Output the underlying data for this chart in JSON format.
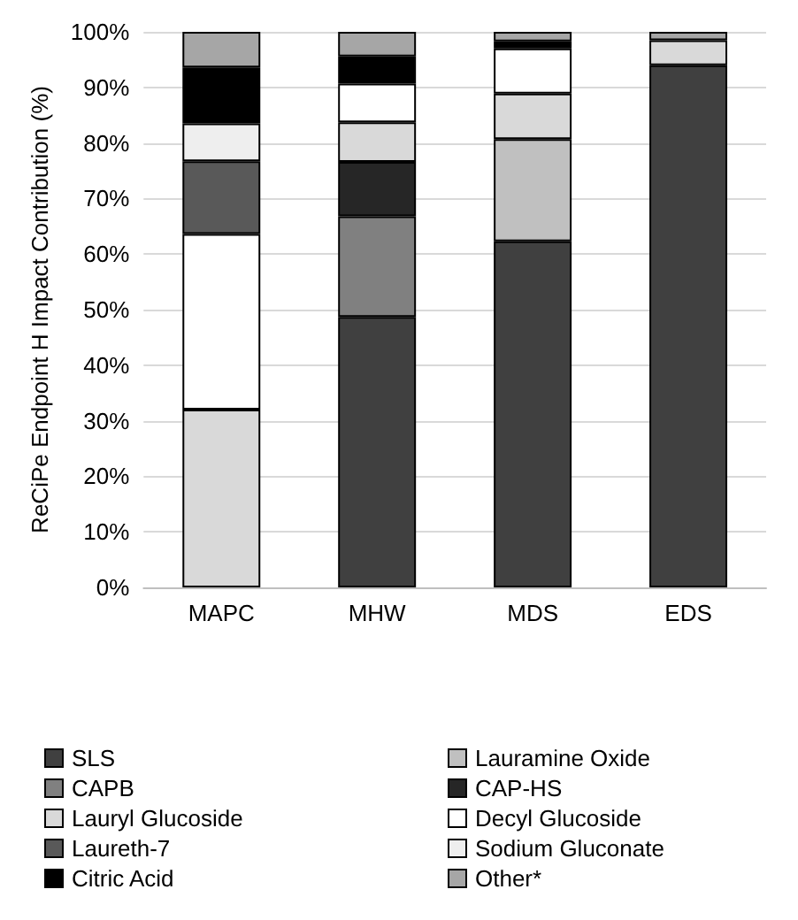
{
  "chart_data": {
    "type": "bar",
    "stacked": true,
    "ylabel": "ReCiPe Endpoint H Impact Contribution (%)",
    "categories": [
      "MAPC",
      "MHW",
      "MDS",
      "EDS"
    ],
    "series": [
      {
        "name": "SLS",
        "color": "#404040",
        "values": [
          null,
          48.7,
          62.3,
          94.0
        ]
      },
      {
        "name": "Lauramine Oxide",
        "color": "#c0c0c0",
        "values": [
          null,
          null,
          18.4,
          null
        ]
      },
      {
        "name": "CAPB",
        "color": "#808080",
        "values": [
          null,
          18.1,
          null,
          null
        ]
      },
      {
        "name": "CAP-HS",
        "color": "#262626",
        "values": [
          null,
          9.8,
          null,
          null
        ]
      },
      {
        "name": "Lauryl Glucoside",
        "color": "#d9d9d9",
        "values": [
          32.0,
          7.1,
          8.2,
          4.5
        ]
      },
      {
        "name": "Decyl Glucoside",
        "color": "#ffffff",
        "values": [
          31.6,
          7.0,
          8.1,
          null
        ]
      },
      {
        "name": "Laureth-7",
        "color": "#595959",
        "values": [
          13.1,
          null,
          null,
          null
        ]
      },
      {
        "name": "Sodium Gluconate",
        "color": "#eeeeee",
        "values": [
          6.8,
          null,
          null,
          null
        ]
      },
      {
        "name": "Citric Acid",
        "color": "#000000",
        "values": [
          10.1,
          4.9,
          1.3,
          null
        ]
      },
      {
        "name": "Other*",
        "color": "#a6a6a6",
        "values": [
          6.4,
          4.4,
          1.7,
          1.5
        ]
      }
    ],
    "ylim": [
      0,
      100
    ],
    "yticks": [
      {
        "value": 0,
        "label": "0%"
      },
      {
        "value": 10,
        "label": "10%"
      },
      {
        "value": 20,
        "label": "20%"
      },
      {
        "value": 30,
        "label": "30%"
      },
      {
        "value": 40,
        "label": "40%"
      },
      {
        "value": 50,
        "label": "50%"
      },
      {
        "value": 60,
        "label": "60%"
      },
      {
        "value": 70,
        "label": "70%"
      },
      {
        "value": 80,
        "label": "80%"
      },
      {
        "value": 90,
        "label": "90%"
      },
      {
        "value": 100,
        "label": "100%"
      }
    ],
    "grid": "y",
    "legend": "bottom"
  }
}
